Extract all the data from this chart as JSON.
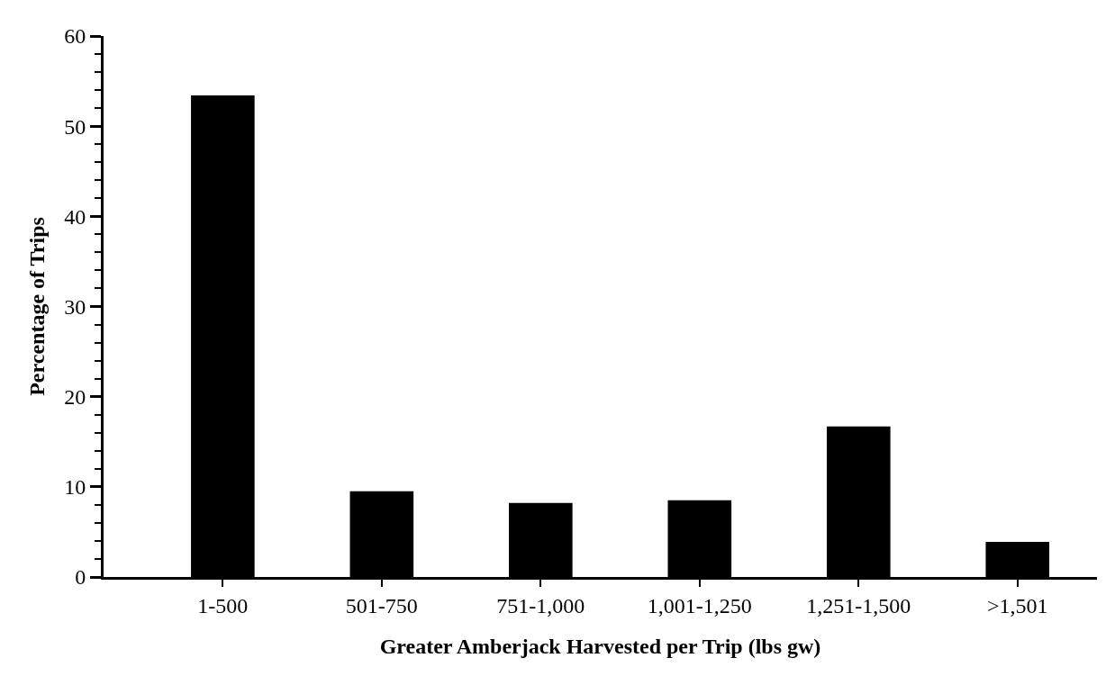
{
  "chart_data": {
    "type": "bar",
    "xlabel": "Greater Amberjack Harvested per Trip (lbs gw)",
    "ylabel": "Percentage of Trips",
    "categories": [
      "1-500",
      "501-750",
      "751-1,000",
      "1,001-1,250",
      "1,251-1,500",
      ">1,501"
    ],
    "values": [
      53.4,
      9.5,
      8.2,
      8.5,
      16.7,
      3.9
    ],
    "color": "#000000",
    "ylim": [
      0,
      60
    ],
    "yticks": [
      0,
      10,
      20,
      30,
      40,
      50,
      60
    ]
  }
}
